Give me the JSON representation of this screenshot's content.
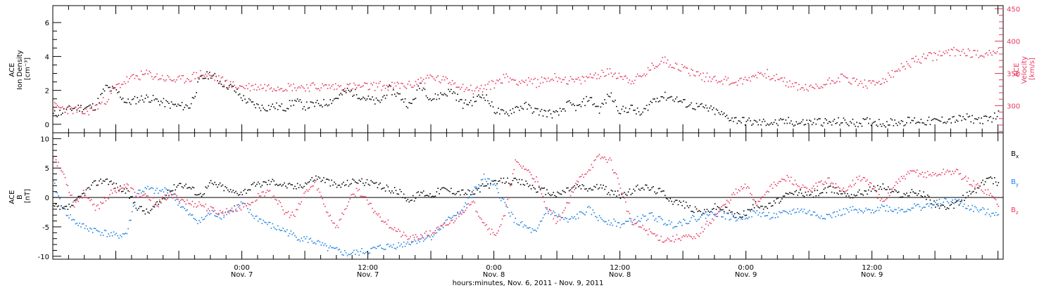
{
  "colors": {
    "axis": "#000000",
    "density": "#000000",
    "velocity": "#e8375f",
    "bx": "#000000",
    "by": "#1a7fe0",
    "bz": "#e8375f"
  },
  "chart_data": [
    {
      "type": "scatter",
      "panel": "plasma",
      "ylabel_lines": [
        "ACE",
        "Ion Density",
        "[cm⁻³]"
      ],
      "ylabel2_lines": [
        "ACE",
        "Velocity",
        "[km/s]"
      ],
      "ylim": [
        -0.5,
        7
      ],
      "y_ticks": [
        0,
        2,
        4,
        6
      ],
      "ylim2": [
        258,
        455
      ],
      "y2_ticks": [
        300,
        350,
        400,
        450
      ],
      "grid": false,
      "series": [
        {
          "key": "density",
          "axis": "left",
          "x": [
            0,
            2,
            4,
            6,
            8,
            10,
            12,
            14,
            16,
            18,
            20,
            22,
            24,
            26,
            28,
            30,
            32,
            34,
            36,
            38,
            40,
            42,
            44,
            46,
            48,
            50,
            52,
            54,
            56,
            58,
            60,
            62,
            64,
            66,
            68,
            70,
            72,
            74,
            76,
            78,
            80,
            82,
            84,
            86,
            88,
            90,
            92,
            94,
            96,
            98,
            100,
            102,
            104,
            106,
            108,
            110,
            112,
            114,
            116,
            118,
            120,
            122,
            124,
            126,
            128,
            130,
            132,
            134,
            136,
            138,
            140,
            142,
            144,
            146,
            148,
            150,
            152,
            154,
            156,
            158,
            160,
            162,
            164,
            166,
            168,
            170,
            172,
            174,
            176,
            178,
            180
          ],
          "y": [
            0.6,
            0.8,
            1.0,
            1.0,
            1.1,
            2.2,
            2.0,
            1.3,
            1.5,
            1.6,
            1.4,
            1.2,
            1.1,
            1.1,
            2.7,
            3.0,
            2.5,
            2.2,
            1.6,
            1.2,
            1.0,
            1.1,
            1.0,
            1.4,
            1.1,
            1.2,
            1.3,
            1.6,
            2.0,
            1.8,
            1.5,
            1.3,
            2.1,
            1.7,
            1.1,
            2.4,
            1.5,
            1.8,
            2.0,
            1.2,
            1.4,
            1.8,
            0.9,
            0.6,
            1.0,
            1.1,
            0.8,
            0.7,
            0.6,
            1.2,
            1.0,
            1.6,
            0.9,
            1.8,
            0.8,
            1.0,
            0.6,
            1.4,
            1.7,
            1.6,
            1.3,
            1.1,
            1.0,
            0.8,
            0.5,
            0.3,
            0.2,
            0.1,
            0.15,
            0.1,
            0.2,
            0.1,
            0.15,
            0.2,
            0.1,
            0.2,
            0.1,
            0.15,
            0.2,
            0.1,
            0.15,
            0.2,
            0.25,
            0.2,
            0.2,
            0.3,
            0.3,
            0.4,
            0.3,
            0.3,
            0.6
          ]
        },
        {
          "key": "velocity",
          "axis": "right",
          "x": [
            0,
            2,
            4,
            6,
            8,
            10,
            12,
            14,
            16,
            18,
            20,
            22,
            24,
            26,
            28,
            30,
            32,
            34,
            36,
            38,
            40,
            42,
            44,
            46,
            48,
            50,
            52,
            54,
            56,
            58,
            60,
            62,
            64,
            66,
            68,
            70,
            72,
            74,
            76,
            78,
            80,
            82,
            84,
            86,
            88,
            90,
            92,
            94,
            96,
            98,
            100,
            102,
            104,
            106,
            108,
            110,
            112,
            114,
            116,
            118,
            120,
            122,
            124,
            126,
            128,
            130,
            132,
            134,
            136,
            138,
            140,
            142,
            144,
            146,
            148,
            150,
            152,
            154,
            156,
            158,
            160,
            162,
            164,
            166,
            168,
            170,
            172,
            174,
            176,
            178,
            180
          ],
          "y": [
            300,
            296,
            294,
            290,
            298,
            310,
            330,
            340,
            346,
            350,
            345,
            342,
            340,
            344,
            350,
            346,
            340,
            332,
            330,
            330,
            330,
            330,
            330,
            330,
            330,
            330,
            330,
            330,
            330,
            330,
            330,
            332,
            330,
            332,
            332,
            340,
            345,
            340,
            338,
            330,
            325,
            328,
            335,
            345,
            340,
            338,
            336,
            342,
            345,
            340,
            338,
            345,
            350,
            352,
            348,
            340,
            345,
            360,
            372,
            365,
            358,
            352,
            345,
            343,
            340,
            337,
            340,
            350,
            350,
            342,
            335,
            330,
            327,
            330,
            340,
            345,
            340,
            335,
            333,
            340,
            350,
            362,
            370,
            375,
            378,
            382,
            385,
            384,
            380,
            383,
            385
          ]
        }
      ],
      "x_extent": [
        0,
        180
      ]
    },
    {
      "type": "scatter",
      "panel": "magnetic-field",
      "ylabel_lines": [
        "ACE",
        "B",
        "[nT]"
      ],
      "ylim": [
        -10.5,
        11
      ],
      "y_ticks": [
        -10,
        -5,
        0,
        5,
        10
      ],
      "zero_line": true,
      "grid": false,
      "legend_position": "right",
      "series": [
        {
          "key": "bx",
          "name": "B",
          "sub": "x",
          "x": [
            0,
            2,
            4,
            6,
            8,
            10,
            12,
            14,
            16,
            18,
            20,
            22,
            24,
            26,
            28,
            30,
            32,
            34,
            36,
            38,
            40,
            42,
            44,
            46,
            48,
            50,
            52,
            54,
            56,
            58,
            60,
            62,
            64,
            66,
            68,
            70,
            72,
            74,
            76,
            78,
            80,
            82,
            84,
            86,
            88,
            90,
            92,
            94,
            96,
            98,
            100,
            102,
            104,
            106,
            108,
            110,
            112,
            114,
            116,
            118,
            120,
            122,
            124,
            126,
            128,
            130,
            132,
            134,
            136,
            138,
            140,
            142,
            144,
            146,
            148,
            150,
            152,
            154,
            156,
            158,
            160,
            162,
            164,
            166,
            168,
            170,
            172,
            174,
            176,
            178,
            180
          ],
          "y": [
            -1.5,
            -2.0,
            -1.0,
            1.0,
            2.5,
            3.2,
            2.0,
            1.0,
            -1.5,
            -2.5,
            -1.0,
            1.0,
            2.5,
            1.8,
            0.5,
            2.5,
            2.0,
            1.0,
            1.0,
            2.0,
            2.5,
            2.8,
            2.2,
            1.8,
            2.5,
            3.5,
            3.0,
            2.0,
            2.5,
            3.0,
            2.5,
            2.0,
            1.5,
            1.0,
            -0.5,
            1.0,
            0.5,
            1.5,
            1.2,
            1.0,
            0.8,
            2.0,
            2.5,
            3.0,
            2.8,
            2.5,
            1.5,
            1.0,
            0.5,
            1.5,
            2.0,
            1.5,
            2.0,
            1.0,
            0.5,
            1.0,
            2.0,
            1.5,
            1.0,
            -0.5,
            -1.0,
            -2.0,
            -2.5,
            -1.5,
            -2.0,
            -3.0,
            -2.5,
            -1.0,
            -1.5,
            -0.5,
            0.5,
            1.0,
            0.5,
            1.0,
            1.5,
            1.0,
            0.5,
            1.0,
            1.5,
            2.0,
            1.0,
            0.5,
            1.0,
            0.5,
            -1.0,
            -2.0,
            -1.0,
            0.5,
            1.5,
            3.5,
            2.5
          ]
        },
        {
          "key": "by",
          "name": "B",
          "sub": "y",
          "x": [
            0,
            2,
            4,
            6,
            8,
            10,
            12,
            14,
            16,
            18,
            20,
            22,
            24,
            26,
            28,
            30,
            32,
            34,
            36,
            38,
            40,
            42,
            44,
            46,
            48,
            50,
            52,
            54,
            56,
            58,
            60,
            62,
            64,
            66,
            68,
            70,
            72,
            74,
            76,
            78,
            80,
            82,
            84,
            86,
            88,
            90,
            92,
            94,
            96,
            98,
            100,
            102,
            104,
            106,
            108,
            110,
            112,
            114,
            116,
            118,
            120,
            122,
            124,
            126,
            128,
            130,
            132,
            134,
            136,
            138,
            140,
            142,
            144,
            146,
            148,
            150,
            152,
            154,
            156,
            158,
            160,
            162,
            164,
            166,
            168,
            170,
            172,
            174,
            176,
            178,
            180
          ],
          "y": [
            2.5,
            -2.0,
            -4.0,
            -5.0,
            -5.5,
            -6.0,
            -6.5,
            -6.0,
            1.0,
            1.5,
            1.0,
            1.5,
            -1.0,
            -3.0,
            -4.0,
            -2.5,
            -3.0,
            -2.0,
            -1.0,
            -3.0,
            -4.0,
            -5.0,
            -5.5,
            -6.5,
            -7.0,
            -7.5,
            -8.5,
            -9.0,
            -9.5,
            -9.3,
            -9.0,
            -8.5,
            -8.2,
            -8.0,
            -7.5,
            -7.0,
            -6.5,
            -5.0,
            -3.0,
            -2.0,
            1.0,
            3.5,
            2.0,
            -1.0,
            -4.0,
            -5.0,
            -6.0,
            -2.0,
            -3.0,
            -4.0,
            -3.0,
            -2.0,
            -3.5,
            -4.0,
            -4.5,
            -4.0,
            -3.5,
            -3.0,
            -4.0,
            -4.5,
            -4.0,
            -3.5,
            -3.0,
            -2.5,
            -3.0,
            -3.5,
            -3.0,
            -2.5,
            -3.0,
            -3.0,
            -2.5,
            -2.0,
            -2.5,
            -3.0,
            -3.0,
            -2.5,
            -2.0,
            -2.5,
            -2.0,
            -1.5,
            -2.0,
            -2.0,
            -1.5,
            -1.5,
            -1.0,
            -0.5,
            -0.5,
            -1.5,
            -2.0,
            -2.5,
            -2.5
          ]
        },
        {
          "key": "bz",
          "name": "B",
          "sub": "z",
          "x": [
            0,
            2,
            4,
            6,
            8,
            10,
            12,
            14,
            16,
            18,
            20,
            22,
            24,
            26,
            28,
            30,
            32,
            34,
            36,
            38,
            40,
            42,
            44,
            46,
            48,
            50,
            52,
            54,
            56,
            58,
            60,
            62,
            64,
            66,
            68,
            70,
            72,
            74,
            76,
            78,
            80,
            82,
            84,
            86,
            88,
            90,
            92,
            94,
            96,
            98,
            100,
            102,
            104,
            106,
            108,
            110,
            112,
            114,
            116,
            118,
            120,
            122,
            124,
            126,
            128,
            130,
            132,
            134,
            136,
            138,
            140,
            142,
            144,
            146,
            148,
            150,
            152,
            154,
            156,
            158,
            160,
            162,
            164,
            166,
            168,
            170,
            172,
            174,
            176,
            178,
            180
          ],
          "y": [
            7.0,
            4.0,
            -1.0,
            1.0,
            -2.0,
            0.0,
            1.5,
            2.0,
            0.5,
            0.0,
            -1.0,
            0.5,
            0.0,
            -1.0,
            -1.0,
            -2.0,
            -2.5,
            -2.0,
            -1.5,
            -0.5,
            1.0,
            0.5,
            -2.5,
            -3.0,
            1.0,
            2.5,
            -2.0,
            -5.0,
            -1.0,
            1.5,
            -1.0,
            -3.0,
            -4.5,
            -6.0,
            -7.0,
            -6.5,
            -6.0,
            -5.0,
            -4.0,
            -2.0,
            -1.0,
            -4.0,
            -6.5,
            -3.0,
            6.0,
            5.0,
            3.0,
            -2.0,
            -4.0,
            -1.0,
            3.0,
            5.0,
            7.0,
            6.5,
            2.0,
            -4.0,
            -5.0,
            -6.0,
            -7.0,
            -7.0,
            -6.5,
            -7.0,
            -5.0,
            -3.0,
            -1.0,
            1.0,
            2.0,
            -1.0,
            1.5,
            2.5,
            3.5,
            2.0,
            1.0,
            2.5,
            3.0,
            1.0,
            2.5,
            3.5,
            2.0,
            -1.0,
            2.0,
            3.5,
            4.5,
            4.0,
            4.0,
            4.5,
            4.5,
            3.0,
            2.0,
            1.0,
            -1.0
          ]
        }
      ],
      "x_extent": [
        0,
        180
      ]
    }
  ],
  "x_axis": {
    "xlim": [
      0,
      181
    ],
    "ticks": [
      {
        "x": 36,
        "line1": "0:00",
        "line2": "Nov. 7"
      },
      {
        "x": 60,
        "line1": "12:00",
        "line2": "Nov. 7"
      },
      {
        "x": 84,
        "line1": "0:00",
        "line2": "Nov. 8"
      },
      {
        "x": 108,
        "line1": "12:00",
        "line2": "Nov. 8"
      },
      {
        "x": 132,
        "line1": "0:00",
        "line2": "Nov. 9"
      },
      {
        "x": 156,
        "line1": "12:00",
        "line2": "Nov. 9"
      }
    ],
    "xlabel": "hours:minutes, Nov. 6, 2011 - Nov. 9, 2011"
  }
}
